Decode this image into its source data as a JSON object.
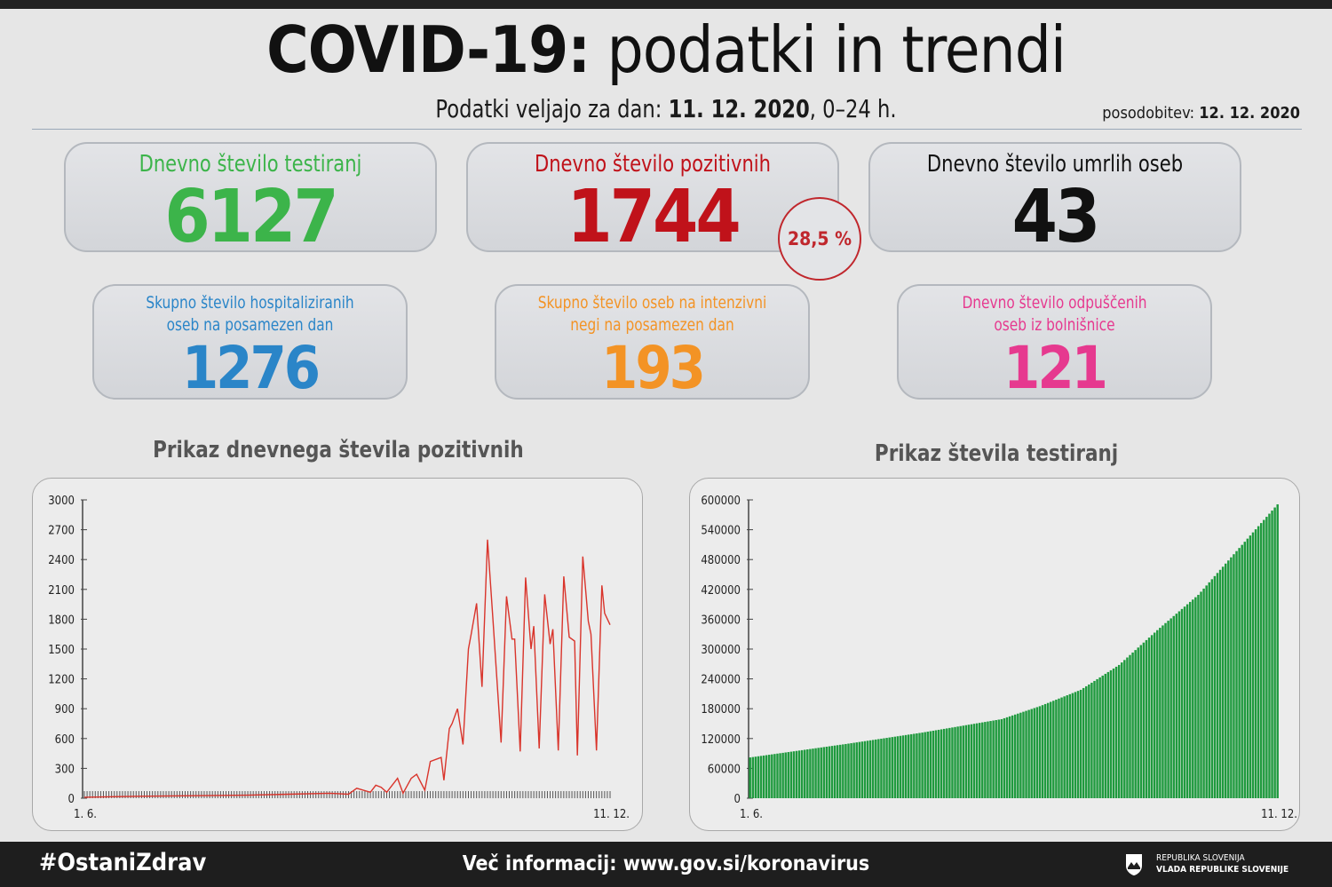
{
  "header": {
    "title_bold": "COVID-19:",
    "title_rest": " podatki in trendi",
    "subtitle_prefix": "Podatki veljajo za dan: ",
    "subtitle_date": "11. 12. 2020",
    "subtitle_suffix": ", 0–24 h.",
    "update_label": "posodobitev: ",
    "update_date": "12. 12. 2020"
  },
  "cards": {
    "tests": {
      "label": "Dnevno število testiranj",
      "value": "6127",
      "color": "#3cb44a"
    },
    "positive": {
      "label": "Dnevno število pozitivnih",
      "value": "1744",
      "color": "#c0121a",
      "share": "28,5 %"
    },
    "deaths": {
      "label": "Dnevno število umrlih oseb",
      "value": "43",
      "color": "#111111"
    },
    "hospital": {
      "label1": "Skupno število hospitaliziranih",
      "label2": "oseb na posamezen dan",
      "value": "1276",
      "color": "#2a85c8"
    },
    "icu": {
      "label1": "Skupno število oseb na intenzivni",
      "label2": "negi na posamezen dan",
      "value": "193",
      "color": "#f39325"
    },
    "discharged": {
      "label1": "Dnevno število odpuščenih",
      "label2": "oseb iz bolnišnice",
      "value": "121",
      "color": "#e6398f"
    }
  },
  "chart_data": [
    {
      "type": "line",
      "title": "Prikaz dnevnega števila pozitivnih",
      "xlabel": "",
      "ylabel": "",
      "x_start_label": "1. 6.",
      "x_end_label": "11. 12.",
      "days": 194,
      "ylim": [
        0,
        3000
      ],
      "yticks": [
        "0",
        "300",
        "600",
        "900",
        "1200",
        "1500",
        "1800",
        "2100",
        "2400",
        "2700",
        "3000"
      ],
      "color": "#d9342b",
      "points": [
        [
          0,
          10
        ],
        [
          20,
          20
        ],
        [
          40,
          25
        ],
        [
          60,
          30
        ],
        [
          75,
          40
        ],
        [
          90,
          50
        ],
        [
          97,
          40
        ],
        [
          100,
          100
        ],
        [
          105,
          60
        ],
        [
          107,
          130
        ],
        [
          109,
          110
        ],
        [
          111,
          60
        ],
        [
          115,
          200
        ],
        [
          117,
          50
        ],
        [
          120,
          200
        ],
        [
          122,
          240
        ],
        [
          125,
          80
        ],
        [
          127,
          370
        ],
        [
          130,
          400
        ],
        [
          131,
          410
        ],
        [
          132,
          180
        ],
        [
          134,
          700
        ],
        [
          135,
          750
        ],
        [
          137,
          900
        ],
        [
          139,
          540
        ],
        [
          141,
          1500
        ],
        [
          142,
          1650
        ],
        [
          144,
          1960
        ],
        [
          146,
          1120
        ],
        [
          148,
          2600
        ],
        [
          150,
          1800
        ],
        [
          153,
          560
        ],
        [
          155,
          2030
        ],
        [
          157,
          1600
        ],
        [
          158,
          1600
        ],
        [
          160,
          470
        ],
        [
          162,
          2220
        ],
        [
          164,
          1500
        ],
        [
          165,
          1730
        ],
        [
          167,
          500
        ],
        [
          169,
          2050
        ],
        [
          171,
          1550
        ],
        [
          172,
          1700
        ],
        [
          174,
          480
        ],
        [
          176,
          2230
        ],
        [
          178,
          1620
        ],
        [
          180,
          1580
        ],
        [
          181,
          430
        ],
        [
          183,
          2430
        ],
        [
          185,
          1780
        ],
        [
          186,
          1650
        ],
        [
          188,
          480
        ],
        [
          190,
          2140
        ],
        [
          191,
          1860
        ],
        [
          193,
          1744
        ]
      ]
    },
    {
      "type": "bar",
      "title": "Prikaz števila testiranj",
      "xlabel": "",
      "ylabel": "",
      "x_start_label": "1. 6.",
      "x_end_label": "11. 12.",
      "days": 194,
      "ylim": [
        0,
        600000
      ],
      "yticks": [
        "0",
        "60000",
        "120000",
        "180000",
        "240000",
        "300000",
        "360000",
        "420000",
        "480000",
        "540000",
        "600000"
      ],
      "color": "#1f9a3e",
      "points": [
        [
          0,
          82000
        ],
        [
          35,
          109000
        ],
        [
          63,
          132000
        ],
        [
          92,
          159000
        ],
        [
          106,
          185000
        ],
        [
          121,
          218000
        ],
        [
          135,
          268000
        ],
        [
          149,
          338000
        ],
        [
          164,
          409000
        ],
        [
          178,
          497000
        ],
        [
          193,
          591000
        ]
      ]
    }
  ],
  "footer": {
    "hashtag": "#OstaniZdrav",
    "more_info": "Več informacij: www.gov.si/koronavirus",
    "gov_line1": "REPUBLIKA SLOVENIJA",
    "gov_line2": "VLADA REPUBLIKE SLOVENIJE"
  }
}
